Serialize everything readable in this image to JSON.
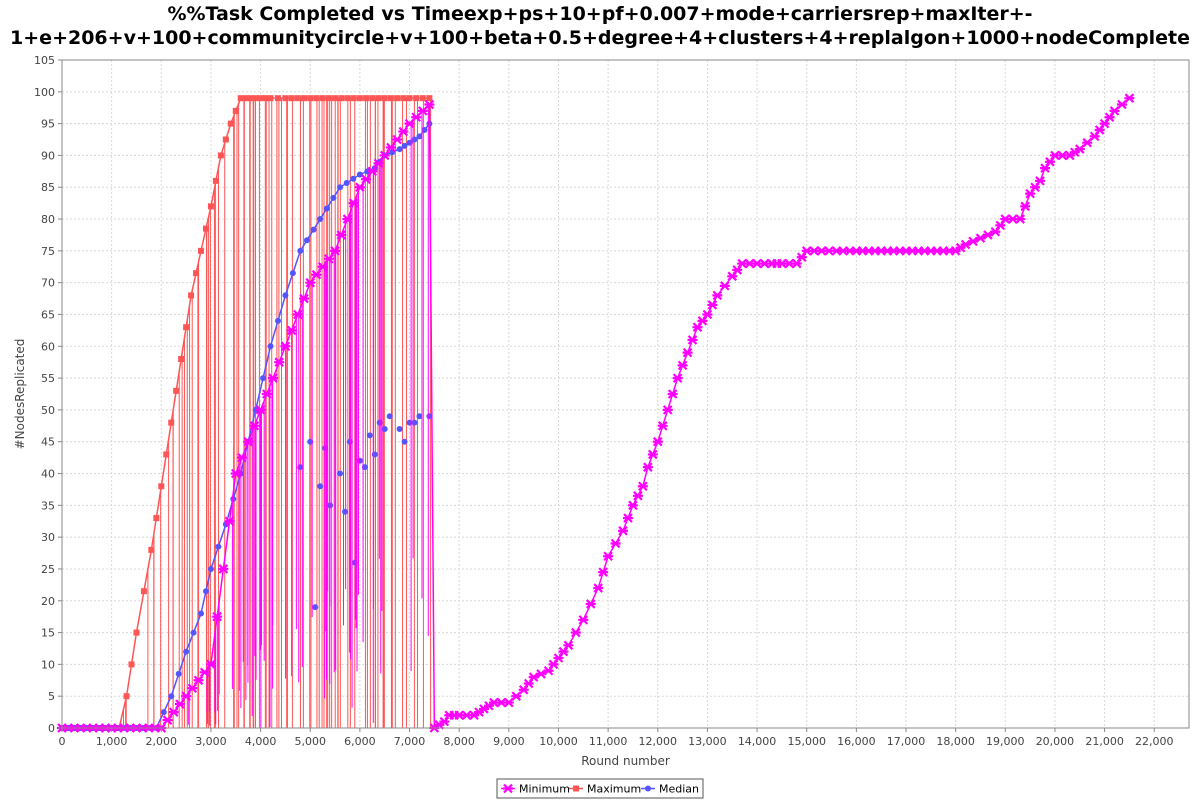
{
  "chart_data": {
    "type": "line",
    "title_line1": "%%Task Completed vs Timeexp+ps+10+pf+0.007+mode+carriersrep+maxIter+-",
    "title_line2": "1+e+206+v+100+communitycircle+v+100+beta+0.5+degree+4+clusters+4+replalgon+1000+nodeComplete",
    "xlabel": "Round number",
    "ylabel": "#NodesReplicated",
    "xlim": [
      0,
      22700
    ],
    "ylim": [
      0,
      105
    ],
    "xticks": [
      0,
      1000,
      2000,
      3000,
      4000,
      5000,
      6000,
      7000,
      8000,
      9000,
      10000,
      11000,
      12000,
      13000,
      14000,
      15000,
      16000,
      17000,
      18000,
      19000,
      20000,
      21000,
      22000
    ],
    "xtick_labels": [
      "0",
      "1,000",
      "2,000",
      "3,000",
      "4,000",
      "5,000",
      "6,000",
      "7,000",
      "8,000",
      "9,000",
      "10,000",
      "11,000",
      "12,000",
      "13,000",
      "14,000",
      "15,000",
      "16,000",
      "17,000",
      "18,000",
      "19,000",
      "20,000",
      "21,000",
      "22,000"
    ],
    "yticks": [
      0,
      5,
      10,
      15,
      20,
      25,
      30,
      35,
      40,
      45,
      50,
      55,
      60,
      65,
      70,
      75,
      80,
      85,
      90,
      95,
      100,
      105
    ],
    "grid": true,
    "legend_position": "bottom",
    "series": [
      {
        "name": "Minimum",
        "color": "#ff00ff",
        "marker": "star",
        "x": [
          0,
          1000,
          2000,
          3000,
          3500,
          4000,
          4500,
          5000,
          5500,
          6000,
          6500,
          7000,
          7400,
          7500,
          7700,
          7800,
          8000,
          8300,
          8500,
          8700,
          9000,
          9300,
          9500,
          9800,
          10000,
          10200,
          10500,
          10800,
          11000,
          11300,
          11500,
          11700,
          11800,
          12000,
          12200,
          12400,
          12600,
          12800,
          13000,
          13200,
          13500,
          13700,
          14000,
          14300,
          14500,
          14800,
          15000,
          15300,
          15600,
          16000,
          16500,
          17000,
          17500,
          18000,
          18200,
          18500,
          18800,
          19000,
          19300,
          19500,
          19700,
          19800,
          20000,
          20300,
          20500,
          20800,
          21000,
          21200,
          21500
        ],
        "y": [
          0,
          0,
          0,
          10,
          40,
          50,
          60,
          70,
          75,
          85,
          90,
          95,
          98,
          0,
          1,
          2,
          2,
          2,
          3,
          4,
          4,
          6,
          8,
          9,
          11,
          13,
          17,
          22,
          27,
          31,
          35,
          38,
          41,
          45,
          50,
          55,
          59,
          63,
          65,
          68,
          71,
          73,
          73,
          73,
          73,
          73,
          75,
          75,
          75,
          75,
          75,
          75,
          75,
          75,
          76,
          77,
          78,
          80,
          80,
          84,
          86,
          88,
          90,
          90,
          91,
          93,
          95,
          97,
          99
        ],
        "vertical_drop_range": [
          2500,
          7400
        ],
        "vertical_drop_count": 60
      },
      {
        "name": "Maximum",
        "color": "#ff5555",
        "marker": "square",
        "x": [
          0,
          1000,
          1150,
          1300,
          1500,
          1800,
          2000,
          2200,
          2400,
          2600,
          2800,
          3000,
          3200,
          3400,
          3600,
          3800,
          4000,
          4200,
          4500,
          5000,
          5500,
          6000,
          6500,
          7000,
          7400
        ],
        "y": [
          0,
          0,
          0,
          5,
          15,
          28,
          38,
          48,
          58,
          68,
          75,
          82,
          90,
          95,
          99,
          99,
          99,
          99,
          99,
          99,
          99,
          99,
          99,
          99,
          99
        ],
        "vertical_drop_range": [
          1150,
          7450
        ],
        "vertical_drop_count": 90
      },
      {
        "name": "Median",
        "color": "#5555ff",
        "marker": "circle",
        "x": [
          0,
          1500,
          1900,
          2200,
          2500,
          2800,
          3000,
          3300,
          3600,
          3900,
          4200,
          4500,
          4800,
          5200,
          5600,
          6000,
          6300,
          6500,
          6800,
          7000,
          7200,
          7400
        ],
        "y": [
          0,
          0,
          0,
          5,
          12,
          18,
          25,
          32,
          40,
          50,
          60,
          68,
          75,
          80,
          85,
          87,
          88,
          90,
          91,
          92,
          93,
          95
        ],
        "scatter_points": [
          [
            5000,
            45
          ],
          [
            5200,
            38
          ],
          [
            5400,
            35
          ],
          [
            5600,
            40
          ],
          [
            5800,
            45
          ],
          [
            6000,
            42
          ],
          [
            6200,
            46
          ],
          [
            6400,
            48
          ],
          [
            6600,
            49
          ],
          [
            6800,
            47
          ],
          [
            7000,
            48
          ],
          [
            7200,
            49
          ],
          [
            7400,
            49
          ],
          [
            5900,
            26
          ],
          [
            5700,
            34
          ],
          [
            5100,
            19
          ],
          [
            4800,
            41
          ],
          [
            5300,
            44
          ],
          [
            6100,
            41
          ],
          [
            6300,
            43
          ],
          [
            6500,
            47
          ],
          [
            6900,
            45
          ],
          [
            7100,
            48
          ]
        ]
      }
    ]
  }
}
